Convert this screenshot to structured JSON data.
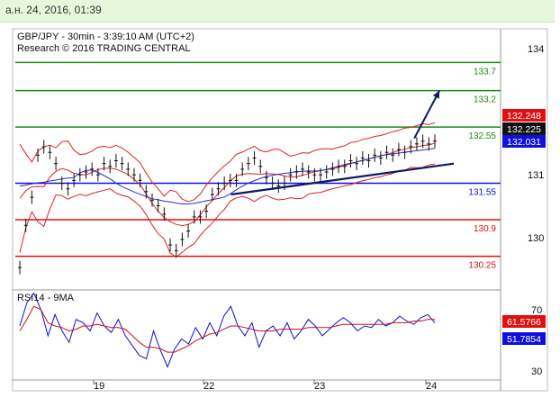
{
  "header": {
    "timestamp": "а.н. 24, 2016, 01:39"
  },
  "chart_data": [
    {
      "type": "line",
      "title": "GBP/JPY - 30min - 3:39:10 AM (UTC+2)",
      "subtitle": "Research © 2016 TRADING CENTRAL",
      "x_tick_labels": [
        "19",
        "22",
        "23",
        "24"
      ],
      "y_tick_labels": [
        "130",
        "131",
        "134"
      ],
      "ylim": [
        129.65,
        134.3
      ],
      "levels": [
        {
          "value": 133.7,
          "label": "133.7",
          "color": "#1a8a1a"
        },
        {
          "value": 133.2,
          "label": "133.2",
          "color": "#1a8a1a"
        },
        {
          "value": 132.55,
          "label": "132.55",
          "color": "#1a8a1a"
        },
        {
          "value": 131.55,
          "label": "131.55",
          "color": "#1010dd"
        },
        {
          "value": 130.9,
          "label": "130.9",
          "color": "#dd1111"
        },
        {
          "value": 130.25,
          "label": "130.25",
          "color": "#dd1111"
        }
      ],
      "price_tags": [
        {
          "value": 132.248,
          "label": "132.248",
          "color": "#dd1111"
        },
        {
          "value": 132.225,
          "label": "132.225",
          "color": "#111111"
        },
        {
          "value": 132.031,
          "label": "132.031",
          "color": "#1010dd"
        }
      ],
      "series": [
        {
          "values": [
            130.05,
            130.8,
            131.3,
            132.05,
            132.2,
            132.1,
            131.9,
            131.55,
            131.45,
            131.6,
            131.7,
            131.75,
            131.8,
            131.7,
            131.9,
            131.85,
            131.95,
            131.9,
            131.8,
            131.7,
            131.6,
            131.4,
            131.25,
            131.15,
            131.0,
            130.45,
            130.35,
            130.55,
            130.7,
            130.95,
            130.95,
            131.05,
            131.35,
            131.45,
            131.55,
            131.6,
            131.6,
            131.8,
            131.9,
            132.0,
            131.85,
            131.65,
            131.55,
            131.5,
            131.55,
            131.7,
            131.75,
            131.8,
            131.75,
            131.7,
            131.7,
            131.75,
            131.8,
            131.85,
            131.85,
            131.95,
            131.9,
            132.0,
            131.95,
            132.05,
            132.0,
            132.1,
            132.05,
            132.15,
            132.1,
            132.2,
            132.25,
            132.3,
            132.25,
            132.3
          ],
          "color": "#111111"
        }
      ],
      "trend_line_1": [
        [
          23.5,
          131.35
        ],
        [
          29.7,
          131.9
        ]
      ],
      "forecast_arrow": [
        [
          28.6,
          132.35
        ],
        [
          29.3,
          133.2
        ]
      ]
    },
    {
      "type": "line",
      "title": "RSI14 - 9MA",
      "y_tick_labels": [
        "70",
        "30"
      ],
      "ylim": [
        25,
        80
      ],
      "value_tags": [
        {
          "value": 61.5766,
          "label": "61.5766",
          "color": "#dd1111"
        },
        {
          "value": 51.7854,
          "label": "51.7854",
          "color": "#1010dd"
        }
      ],
      "series": [
        {
          "values": [
            58,
            72,
            78,
            68,
            52,
            65,
            55,
            48,
            62,
            60,
            55,
            66,
            58,
            54,
            62,
            52,
            46,
            40,
            38,
            55,
            43,
            33,
            44,
            50,
            47,
            57,
            50,
            60,
            52,
            64,
            70,
            58,
            52,
            60,
            45,
            55,
            58,
            52,
            60,
            50,
            55,
            62,
            58,
            52,
            56,
            60,
            63,
            60,
            55,
            58,
            57,
            62,
            58,
            60,
            64,
            61,
            59,
            63,
            65,
            60
          ],
          "color": "#1010cc"
        },
        {
          "values": [
            55,
            62,
            70,
            68,
            60,
            58,
            57,
            55,
            56,
            58,
            58,
            59,
            58,
            57,
            57,
            56,
            52,
            48,
            45,
            45,
            44,
            42,
            42,
            44,
            46,
            49,
            51,
            53,
            54,
            56,
            58,
            58,
            57,
            56,
            55,
            55,
            55,
            56,
            56,
            56,
            56,
            57,
            57,
            57,
            57,
            58,
            59,
            59,
            59,
            59,
            59,
            59,
            59,
            60,
            60,
            60,
            61,
            61,
            62,
            62
          ],
          "color": "#cc1111"
        }
      ]
    }
  ]
}
